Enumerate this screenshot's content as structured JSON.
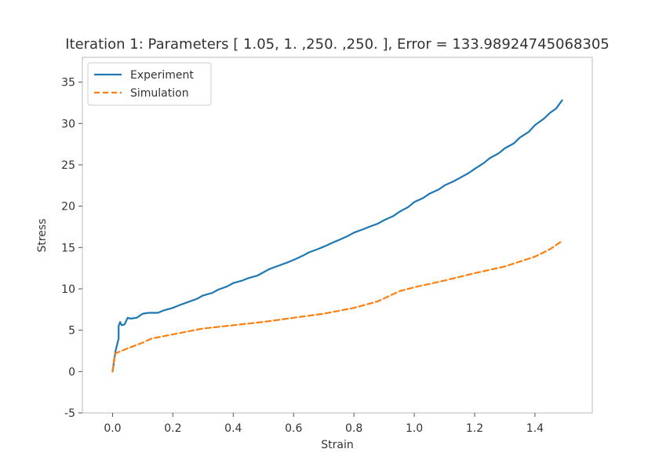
{
  "chart_data": {
    "type": "line",
    "title": "Iteration 1: Parameters [  1.05,   1.   ,250.   ,250.  ], Error = 133.98924745068305",
    "xlabel": "Strain",
    "ylabel": "Stress",
    "xlim": [
      -0.1,
      1.59
    ],
    "ylim": [
      -5,
      38
    ],
    "xticks": [
      "0.0",
      "0.2",
      "0.4",
      "0.6",
      "0.8",
      "1.0",
      "1.2",
      "1.4"
    ],
    "xtick_values": [
      0.0,
      0.2,
      0.4,
      0.6,
      0.8,
      1.0,
      1.2,
      1.4
    ],
    "yticks": [
      "-5",
      "0",
      "5",
      "10",
      "15",
      "20",
      "25",
      "30",
      "35"
    ],
    "ytick_values": [
      -5,
      0,
      5,
      10,
      15,
      20,
      25,
      30,
      35
    ],
    "grid": false,
    "legend_position": "top-left",
    "series": [
      {
        "name": "Experiment",
        "style": "solid",
        "color": "#1f77b4",
        "x": [
          0.0,
          0.01,
          0.02,
          0.02,
          0.025,
          0.03,
          0.04,
          0.05,
          0.06,
          0.08,
          0.1,
          0.12,
          0.15,
          0.17,
          0.2,
          0.22,
          0.25,
          0.28,
          0.3,
          0.33,
          0.35,
          0.38,
          0.4,
          0.43,
          0.45,
          0.48,
          0.5,
          0.52,
          0.55,
          0.58,
          0.6,
          0.63,
          0.65,
          0.68,
          0.7,
          0.73,
          0.75,
          0.78,
          0.8,
          0.83,
          0.85,
          0.88,
          0.9,
          0.93,
          0.95,
          0.98,
          1.0,
          1.03,
          1.05,
          1.08,
          1.1,
          1.13,
          1.15,
          1.18,
          1.2,
          1.23,
          1.25,
          1.28,
          1.3,
          1.33,
          1.35,
          1.38,
          1.4,
          1.43,
          1.45,
          1.47,
          1.49
        ],
        "y": [
          0.0,
          2.5,
          4.0,
          5.5,
          6.0,
          5.6,
          5.7,
          6.5,
          6.4,
          6.5,
          7.0,
          7.1,
          7.1,
          7.4,
          7.7,
          8.0,
          8.4,
          8.8,
          9.2,
          9.5,
          9.9,
          10.3,
          10.7,
          11.0,
          11.3,
          11.6,
          12.0,
          12.4,
          12.8,
          13.2,
          13.5,
          14.0,
          14.4,
          14.8,
          15.1,
          15.6,
          15.9,
          16.4,
          16.8,
          17.2,
          17.5,
          17.9,
          18.3,
          18.8,
          19.3,
          19.9,
          20.5,
          21.0,
          21.5,
          22.0,
          22.5,
          23.0,
          23.4,
          24.0,
          24.5,
          25.2,
          25.8,
          26.4,
          27.0,
          27.6,
          28.3,
          29.0,
          29.8,
          30.6,
          31.3,
          31.8,
          32.8
        ]
      },
      {
        "name": "Simulation",
        "style": "dashed",
        "color": "#ff7f0e",
        "x": [
          0.0,
          0.005,
          0.01,
          0.05,
          0.1,
          0.13,
          0.2,
          0.3,
          0.4,
          0.5,
          0.6,
          0.7,
          0.8,
          0.88,
          0.95,
          1.0,
          1.05,
          1.1,
          1.2,
          1.3,
          1.4,
          1.45,
          1.49
        ],
        "y": [
          0.0,
          1.5,
          2.2,
          2.8,
          3.5,
          4.0,
          4.5,
          5.2,
          5.6,
          6.0,
          6.5,
          7.0,
          7.7,
          8.5,
          9.7,
          10.2,
          10.6,
          11.0,
          11.9,
          12.7,
          13.9,
          14.8,
          15.8
        ]
      }
    ]
  }
}
